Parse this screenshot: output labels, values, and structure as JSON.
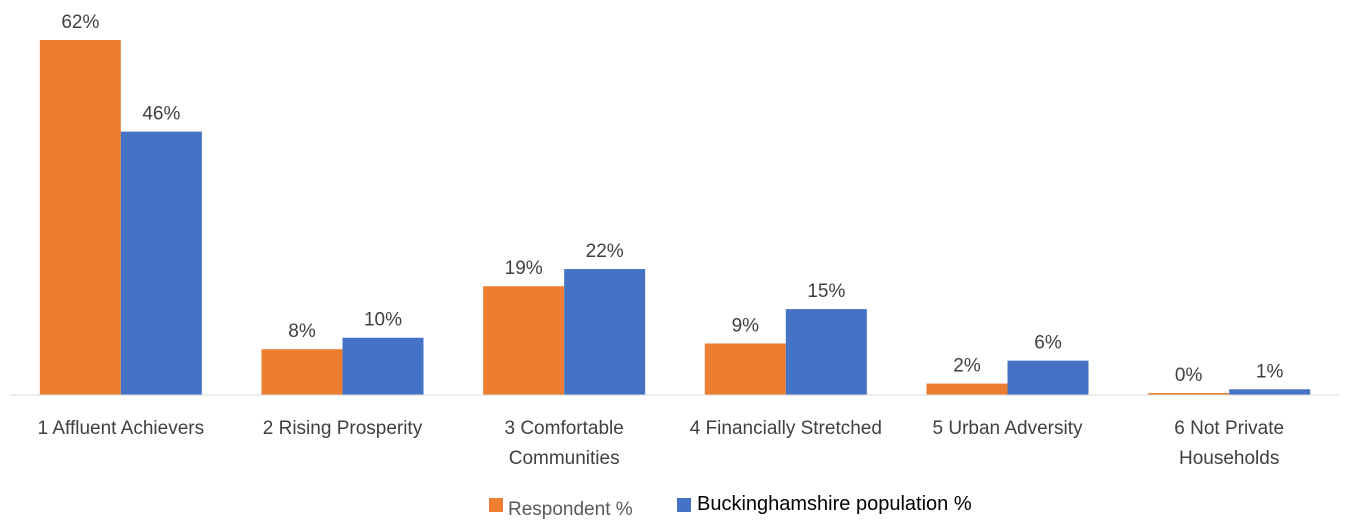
{
  "chart_data": {
    "type": "bar",
    "categories": [
      [
        "1 Affluent Achievers"
      ],
      [
        "2 Rising Prosperity"
      ],
      [
        "3 Comfortable",
        "Communities"
      ],
      [
        "4 Financially Stretched"
      ],
      [
        "5 Urban Adversity"
      ],
      [
        "6 Not Private",
        "Households"
      ]
    ],
    "series": [
      {
        "name": "Respondent %",
        "color": "#ED7D31",
        "values": [
          62,
          8,
          19,
          9,
          2,
          0
        ]
      },
      {
        "name": "Buckinghamshire population %",
        "color": "#4472C4",
        "values": [
          46,
          10,
          22,
          15,
          6,
          1
        ]
      }
    ],
    "value_suffix": "%",
    "ylim": [
      0,
      62
    ],
    "grid": false,
    "legend_position": "bottom"
  }
}
